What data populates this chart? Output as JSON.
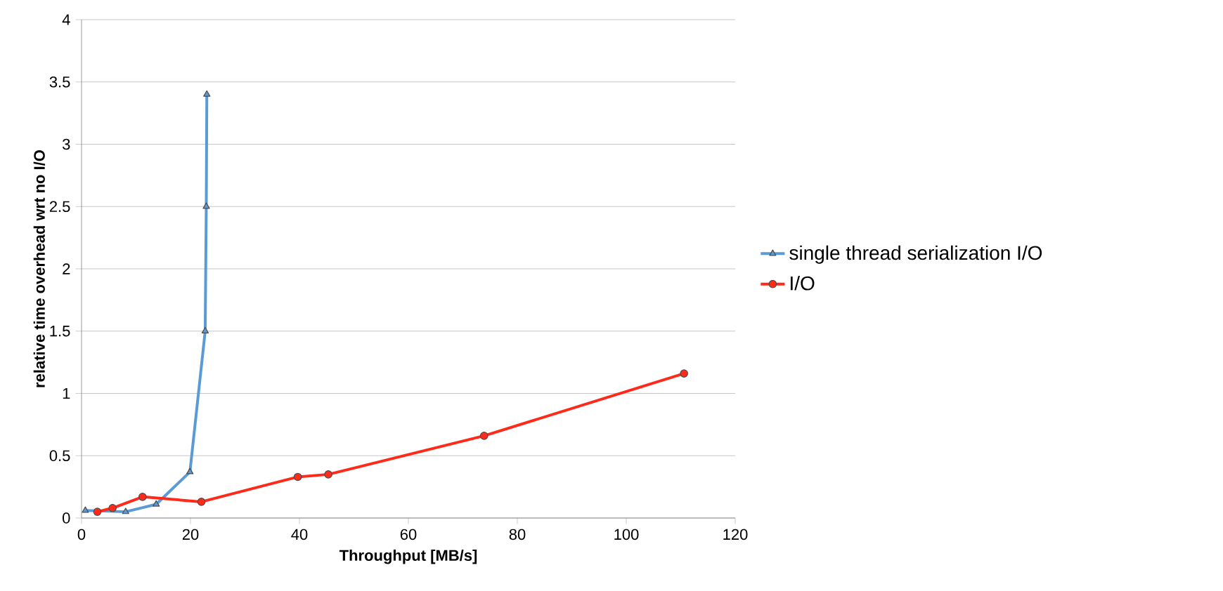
{
  "chart_data": {
    "type": "line",
    "xlabel": "Throughput [MB/s]",
    "ylabel": "relative time overhead wrt no I/O",
    "xlim": [
      0,
      120
    ],
    "xticks": [
      0,
      20,
      40,
      60,
      80,
      100,
      120
    ],
    "ylim": [
      0,
      4
    ],
    "yticks": [
      0,
      0.5,
      1,
      1.5,
      2,
      2.5,
      3,
      3.5,
      4
    ],
    "grid": "y",
    "legend": "right",
    "series": [
      {
        "name": "single thread serialization  I/O",
        "color": "#5b9bd5",
        "marker": "triangle",
        "x": [
          0.7,
          8.1,
          13.7,
          19.9,
          22.7,
          22.9,
          23
        ],
        "values": [
          0.06,
          0.05,
          0.11,
          0.37,
          1.5,
          2.5,
          3.4
        ]
      },
      {
        "name": "I/O",
        "color": "#ff2a1a",
        "marker": "circle",
        "x": [
          2.9,
          5.7,
          11.2,
          22,
          39.7,
          45.3,
          73.9,
          110.6
        ],
        "values": [
          0.05,
          0.08,
          0.17,
          0.13,
          0.33,
          0.35,
          0.66,
          1.16
        ]
      }
    ]
  }
}
